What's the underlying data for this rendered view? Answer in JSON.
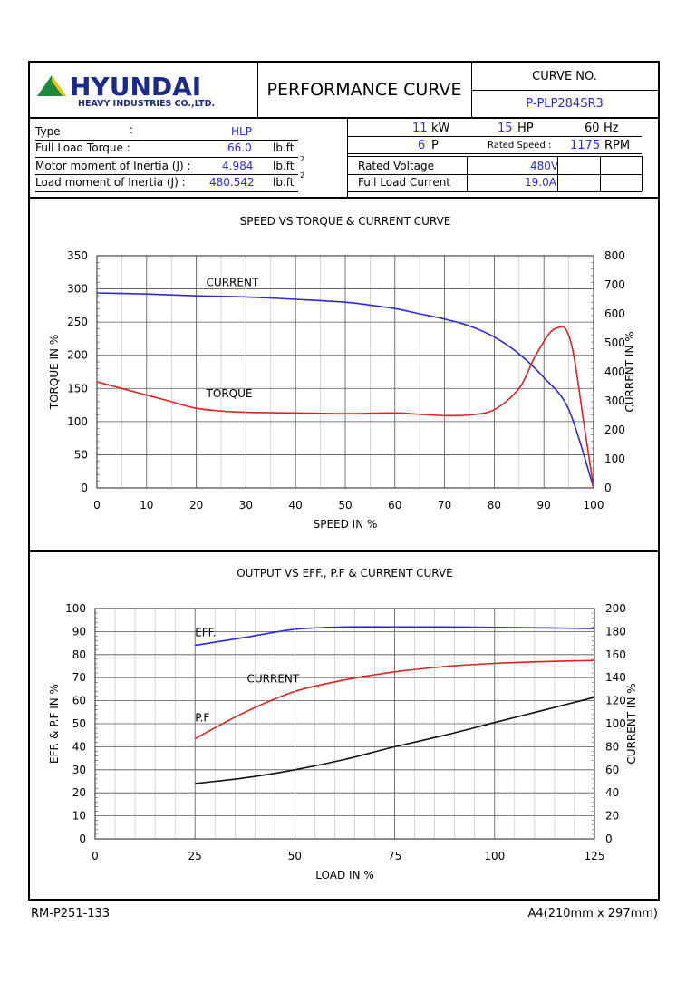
{
  "header": {
    "logo_text": "HYUNDAI",
    "logo_sub": "HEAVY INDUSTRIES CO.,LTD.",
    "title": "PERFORMANCE CURVE",
    "curve_no_label": "CURVE NO.",
    "curve_no": "P-PLP284SR3"
  },
  "specs": {
    "type_label": "Type",
    "type_colon": ":",
    "type_value": "HLP",
    "torque_label": "Full Load Torque :",
    "torque_value": "66.0",
    "torque_unit": "lb.ft",
    "motor_inertia_label": "Motor moment of Inertia (J) :",
    "motor_inertia_value": "4.984",
    "motor_inertia_unit": "lb.ft",
    "motor_inertia_exp": "2",
    "load_inertia_label": "Load moment of Inertia (J) :",
    "load_inertia_value": "480.542",
    "load_inertia_unit": "lb.ft",
    "load_inertia_exp": "2",
    "kw_value": "11",
    "kw_unit": "kW",
    "hp_value": "15",
    "hp_unit": "HP",
    "hz_value": "60",
    "hz_unit": "Hz",
    "pole_value": "6",
    "pole_unit": "P",
    "rated_speed_label": "Rated Speed :",
    "rated_speed_value": "1175",
    "rated_speed_unit": "RPM",
    "rated_voltage_label": "Rated Voltage",
    "rated_voltage_value": "480V",
    "full_load_current_label": "Full Load Current",
    "full_load_current_value": "19.0A"
  },
  "footer": {
    "left": "RM-P251-133",
    "right": "A4(210mm x 297mm)"
  },
  "colors": {
    "blue": "#2b2bd6",
    "red": "#e02020",
    "black": "#111111"
  },
  "chart_data": [
    {
      "type": "line",
      "title": "SPEED VS TORQUE & CURRENT CURVE",
      "xlabel": "SPEED IN %",
      "ylabel": "TORQUE IN %",
      "y2label": "CURRENT IN %",
      "xlim": [
        0,
        100
      ],
      "ylim": [
        0,
        350
      ],
      "y2lim": [
        0,
        800
      ],
      "xticks": [
        0,
        10,
        20,
        30,
        40,
        50,
        60,
        70,
        80,
        90,
        100
      ],
      "yticks": [
        0,
        50,
        100,
        150,
        200,
        250,
        300,
        350
      ],
      "y2ticks": [
        0,
        100,
        200,
        300,
        400,
        500,
        600,
        700,
        800
      ],
      "grid": true,
      "series": [
        {
          "name": "CURRENT",
          "axis": "right",
          "color": "#2b2bd6",
          "x": [
            0,
            10,
            20,
            30,
            40,
            50,
            55,
            60,
            65,
            70,
            75,
            80,
            85,
            90,
            95,
            100
          ],
          "y": [
            672,
            668,
            662,
            658,
            650,
            640,
            630,
            618,
            600,
            582,
            558,
            520,
            462,
            380,
            270,
            0
          ]
        },
        {
          "name": "TORQUE",
          "axis": "left",
          "color": "#e02020",
          "x": [
            0,
            5,
            10,
            15,
            20,
            25,
            30,
            40,
            50,
            60,
            65,
            70,
            75,
            80,
            85,
            88,
            91,
            93,
            94.5,
            96,
            98,
            100
          ],
          "y": [
            160,
            150,
            140,
            130,
            120,
            116,
            114,
            113,
            112,
            113,
            111,
            109,
            110,
            118,
            150,
            195,
            232,
            242,
            238,
            200,
            100,
            0
          ]
        }
      ]
    },
    {
      "type": "line",
      "title": "OUTPUT VS EFF., P.F & CURRENT CURVE",
      "xlabel": "LOAD IN %",
      "ylabel": "EFF. & P.F IN %",
      "y2label": "CURRENT IN %",
      "xlim": [
        0,
        125
      ],
      "ylim": [
        0,
        100
      ],
      "y2lim": [
        0,
        200
      ],
      "xticks": [
        0,
        25,
        50,
        75,
        100,
        125
      ],
      "yticks": [
        0,
        10,
        20,
        30,
        40,
        50,
        60,
        70,
        80,
        90,
        100
      ],
      "y2ticks": [
        0,
        20,
        40,
        60,
        80,
        100,
        120,
        140,
        160,
        180,
        200
      ],
      "grid": true,
      "series": [
        {
          "name": "EFF.",
          "axis": "left",
          "color": "#2b2bd6",
          "x": [
            25,
            37.5,
            50,
            62.5,
            75,
            87.5,
            100,
            112.5,
            125
          ],
          "y": [
            84,
            87.5,
            91,
            92,
            92,
            92,
            91.8,
            91.6,
            91.3
          ]
        },
        {
          "name": "P.F",
          "axis": "left",
          "color": "#e02020",
          "x": [
            25,
            37.5,
            50,
            62.5,
            75,
            87.5,
            100,
            112.5,
            125
          ],
          "y": [
            43.5,
            55,
            64,
            69,
            72.5,
            74.8,
            76.2,
            77,
            77.5
          ]
        },
        {
          "name": "CURRENT",
          "axis": "right",
          "color": "#111111",
          "x": [
            25,
            37.5,
            50,
            62.5,
            75,
            87.5,
            100,
            112.5,
            125
          ],
          "y": [
            48,
            53,
            60,
            69,
            80,
            90,
            101,
            112,
            123
          ]
        }
      ]
    }
  ]
}
